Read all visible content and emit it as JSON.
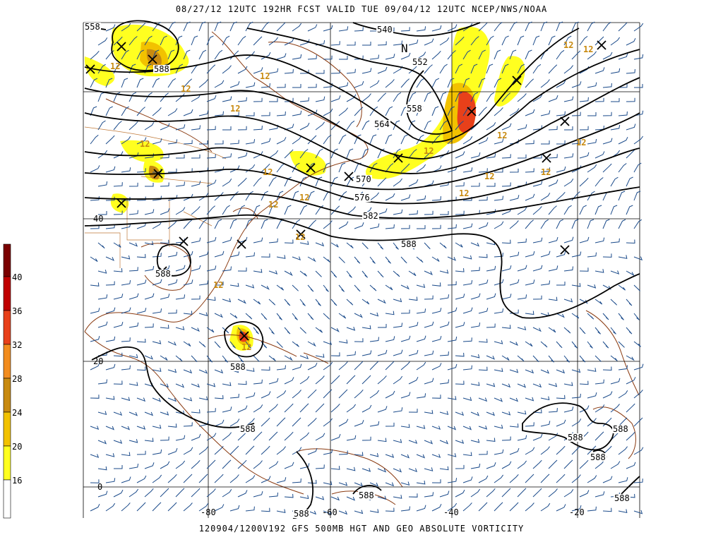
{
  "header": {
    "title": "08/27/12 12UTC  192HR  FCST VALID TUE 09/04/12 12UTC  NCEP/NWS/NOAA"
  },
  "footer": {
    "caption": "120904/1200V192 GFS 500MB HGT AND GEO ABSOLUTE VORTICITY"
  },
  "colorbar": {
    "labels": [
      "40",
      "36",
      "32",
      "28",
      "24",
      "20",
      "16"
    ],
    "colors": [
      "#7a0000",
      "#c00000",
      "#e8401a",
      "#f28c1e",
      "#c88a10",
      "#f2c200",
      "#ffff20",
      "#ffffff"
    ]
  },
  "axes": {
    "lat_labels": [
      "40",
      "20",
      "0"
    ],
    "lon_labels": [
      "-80",
      "-60",
      "-40",
      "-20"
    ]
  },
  "contours": {
    "labels": [
      "558",
      "588",
      "540",
      "552",
      "558",
      "564",
      "570",
      "576",
      "582",
      "588",
      "588",
      "588",
      "588",
      "588",
      "588",
      "588",
      "588",
      "588",
      "588"
    ]
  },
  "vorticity_labels": [
    "12",
    "12",
    "12",
    "12",
    "12",
    "12",
    "12",
    "12",
    "12",
    "12",
    "12",
    "12",
    "12",
    "12",
    "12",
    "12",
    "12",
    "12",
    "12"
  ],
  "markers": {
    "north": "N",
    "max_symbol": "X"
  },
  "colors": {
    "contour": "#000000",
    "wind_barb": "#1a4a8a",
    "coast": "#8a3a10",
    "grid": "#000000"
  }
}
